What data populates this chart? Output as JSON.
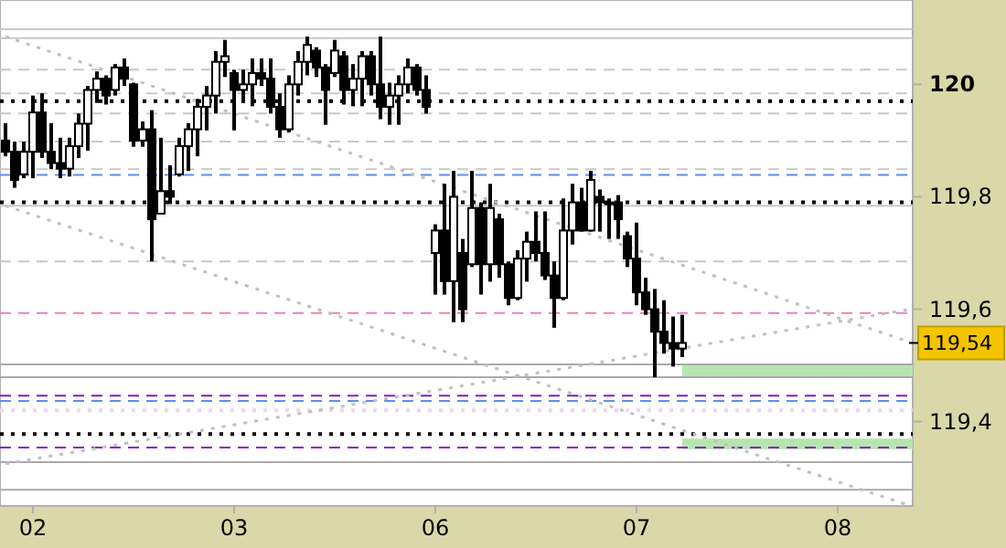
{
  "chart_data": {
    "type": "candlestick",
    "categories": [
      null,
      null,
      null,
      "02",
      null,
      null,
      null,
      null,
      null,
      null,
      null,
      null,
      null,
      null,
      null,
      null,
      null,
      null,
      null,
      null,
      null,
      null,
      null,
      null,
      null,
      "03",
      null,
      null,
      null,
      null,
      null,
      null,
      null,
      null,
      null,
      null,
      null,
      null,
      null,
      null,
      null,
      null,
      null,
      null,
      null,
      null,
      null,
      "06",
      null,
      null,
      null,
      null,
      null,
      null,
      null,
      null,
      null,
      null,
      null,
      null,
      null,
      null,
      null,
      null,
      null,
      null,
      null,
      null,
      null,
      "07",
      null,
      null,
      null,
      null,
      null,
      null,
      null,
      null,
      null,
      null,
      null,
      null,
      null,
      null,
      null,
      null,
      null,
      null,
      null,
      null,
      null,
      "08",
      null,
      null,
      null,
      null,
      null,
      null,
      null,
      null
    ],
    "ylim": [
      119.25,
      120.15
    ],
    "yticks": [
      {
        "value": 119.4,
        "label": "119,4"
      },
      {
        "value": 119.6,
        "label": "119,6"
      },
      {
        "value": 119.8,
        "label": "119,8"
      },
      120
    ],
    "series": [
      {
        "type": "line",
        "color": "#c0c0c0",
        "line_style": "dotted",
        "values": [
          120.085,
          null,
          null,
          null,
          null,
          null,
          null,
          null,
          null,
          null,
          null,
          null,
          null,
          null,
          null,
          null,
          null,
          null,
          null,
          null,
          null,
          null,
          null,
          null,
          null,
          null,
          null,
          null,
          null,
          null,
          null,
          null,
          null,
          null,
          null,
          null,
          null,
          null,
          null,
          null,
          null,
          null,
          null,
          null,
          null,
          null,
          null,
          null,
          null,
          null,
          null,
          null,
          null,
          null,
          null,
          null,
          null,
          null,
          null,
          null,
          null,
          null,
          null,
          null,
          null,
          null,
          null,
          null,
          null,
          null,
          null,
          null,
          null,
          null,
          null,
          null,
          null,
          null,
          null,
          null,
          null,
          null,
          null,
          null,
          null,
          null,
          null,
          null,
          null,
          null,
          null,
          null,
          null,
          null,
          null,
          null,
          null,
          null,
          null,
          119.541
        ]
      },
      {
        "type": "line",
        "color": "#c0c0c0",
        "line_style": "dotted",
        "values": [
          119.784,
          null,
          null,
          null,
          null,
          null,
          null,
          null,
          null,
          null,
          null,
          null,
          null,
          null,
          null,
          null,
          null,
          null,
          null,
          null,
          null,
          null,
          null,
          null,
          null,
          null,
          null,
          null,
          null,
          null,
          null,
          null,
          null,
          null,
          null,
          null,
          null,
          null,
          null,
          null,
          null,
          null,
          null,
          null,
          null,
          null,
          null,
          null,
          null,
          null,
          null,
          null,
          null,
          null,
          null,
          null,
          null,
          null,
          null,
          null,
          null,
          null,
          null,
          null,
          null,
          null,
          null,
          null,
          null,
          null,
          null,
          null,
          null,
          null,
          null,
          null,
          null,
          null,
          null,
          null,
          null,
          null,
          null,
          null,
          null,
          null,
          null,
          null,
          null,
          null,
          null,
          null,
          null,
          null,
          null,
          null,
          null,
          null,
          null,
          119.25
        ]
      },
      {
        "type": "line",
        "color": "#c0c0c0",
        "line_style": "dotted",
        "values": [
          119.325,
          null,
          null,
          null,
          null,
          null,
          null,
          null,
          null,
          null,
          null,
          null,
          null,
          null,
          null,
          null,
          null,
          null,
          null,
          null,
          null,
          null,
          null,
          null,
          null,
          null,
          null,
          null,
          null,
          null,
          null,
          null,
          null,
          null,
          null,
          null,
          null,
          null,
          null,
          null,
          null,
          null,
          null,
          null,
          null,
          null,
          null,
          null,
          null,
          null,
          null,
          null,
          null,
          null,
          null,
          null,
          null,
          null,
          null,
          null,
          null,
          null,
          null,
          null,
          null,
          null,
          null,
          null,
          null,
          null,
          null,
          null,
          null,
          null,
          null,
          null,
          null,
          null,
          null,
          null,
          null,
          null,
          null,
          null,
          null,
          null,
          null,
          null,
          null,
          null,
          null,
          null,
          null,
          null,
          null,
          null,
          null,
          null,
          null,
          119.6
        ]
      },
      {
        "color": "#000000",
        "ohlc": [
          [
            119.9,
            119.931,
            119.872,
            119.88
          ],
          [
            119.88,
            119.898,
            119.816,
            119.83
          ],
          [
            119.84,
            119.898,
            119.833,
            119.88
          ],
          [
            119.88,
            119.98,
            119.833,
            119.95
          ],
          [
            119.95,
            119.984,
            119.869,
            119.88
          ],
          [
            119.88,
            119.931,
            119.849,
            119.86
          ],
          [
            119.86,
            119.905,
            119.833,
            119.85
          ],
          [
            119.85,
            119.905,
            119.836,
            119.89
          ],
          [
            119.89,
            119.948,
            119.869,
            119.93
          ],
          [
            119.93,
            119.997,
            119.882,
            119.99
          ],
          [
            119.99,
            120.023,
            119.967,
            120.01
          ],
          [
            120.01,
            120.016,
            119.964,
            119.98
          ],
          [
            119.99,
            120.036,
            119.98,
            120.03
          ],
          [
            120.03,
            120.046,
            119.997,
            120.01
          ],
          [
            120.0,
            120.003,
            119.889,
            119.9
          ],
          [
            119.9,
            119.934,
            119.889,
            119.92
          ],
          [
            119.92,
            119.954,
            119.685,
            119.76
          ],
          [
            119.77,
            119.905,
            119.77,
            119.81
          ],
          [
            119.81,
            119.856,
            119.787,
            119.8
          ],
          [
            119.84,
            119.905,
            119.836,
            119.89
          ],
          [
            119.89,
            119.931,
            119.846,
            119.92
          ],
          [
            119.92,
            119.974,
            119.872,
            119.96
          ],
          [
            119.96,
            119.997,
            119.918,
            119.98
          ],
          [
            119.98,
            120.059,
            119.948,
            120.04
          ],
          [
            120.04,
            120.079,
            120.013,
            120.05
          ],
          [
            120.02,
            120.026,
            119.918,
            119.99
          ],
          [
            119.99,
            120.026,
            119.967,
            120.0
          ],
          [
            120.0,
            120.046,
            119.961,
            120.02
          ],
          [
            120.02,
            120.046,
            119.997,
            120.01
          ],
          [
            120.01,
            120.046,
            119.948,
            119.96
          ],
          [
            119.96,
            119.984,
            119.905,
            119.92
          ],
          [
            119.92,
            120.016,
            119.915,
            120.0
          ],
          [
            120.0,
            120.059,
            119.98,
            120.04
          ],
          [
            120.04,
            120.085,
            120.016,
            120.07
          ],
          [
            120.06,
            120.066,
            120.013,
            120.03
          ],
          [
            120.03,
            120.036,
            119.928,
            119.99
          ],
          [
            120.02,
            120.079,
            120.013,
            120.06
          ],
          [
            120.05,
            120.059,
            119.964,
            119.99
          ],
          [
            119.99,
            120.036,
            119.961,
            120.01
          ],
          [
            120.01,
            120.059,
            119.961,
            120.05
          ],
          [
            120.05,
            120.059,
            119.98,
            120.0
          ],
          [
            120.0,
            120.085,
            119.938,
            119.96
          ],
          [
            119.96,
            120.003,
            119.928,
            119.98
          ],
          [
            119.98,
            120.016,
            119.928,
            120.0
          ],
          [
            120.0,
            120.046,
            119.984,
            120.03
          ],
          [
            120.03,
            120.036,
            119.98,
            119.99
          ],
          [
            119.99,
            120.016,
            119.948,
            119.96
          ],
          [
            119.7,
            119.751,
            119.626,
            119.74
          ],
          [
            119.74,
            119.823,
            119.626,
            119.65
          ],
          [
            119.65,
            119.846,
            119.577,
            119.8
          ],
          [
            119.7,
            119.725,
            119.577,
            119.6
          ],
          [
            119.68,
            119.846,
            119.675,
            119.78
          ],
          [
            119.78,
            119.79,
            119.626,
            119.68
          ],
          [
            119.68,
            119.823,
            119.649,
            119.78
          ],
          [
            119.76,
            119.77,
            119.656,
            119.68
          ],
          [
            119.68,
            119.685,
            119.607,
            119.62
          ],
          [
            119.62,
            119.705,
            119.616,
            119.69
          ],
          [
            119.69,
            119.738,
            119.649,
            119.72
          ],
          [
            119.72,
            119.774,
            119.685,
            119.7
          ],
          [
            119.7,
            119.774,
            119.652,
            119.66
          ],
          [
            119.66,
            119.685,
            119.567,
            119.62
          ],
          [
            119.62,
            119.797,
            119.616,
            119.74
          ],
          [
            119.74,
            119.823,
            119.715,
            119.79
          ],
          [
            119.79,
            119.816,
            119.738,
            119.74
          ],
          [
            119.74,
            119.846,
            119.738,
            119.83
          ],
          [
            119.8,
            119.813,
            119.738,
            119.79
          ],
          [
            119.79,
            119.797,
            119.725,
            119.79
          ],
          [
            119.79,
            119.803,
            119.725,
            119.76
          ],
          [
            119.73,
            119.738,
            119.675,
            119.69
          ],
          [
            119.69,
            119.754,
            119.607,
            119.63
          ],
          [
            119.63,
            119.656,
            119.59,
            119.6
          ],
          [
            119.6,
            119.636,
            119.479,
            119.56
          ],
          [
            119.56,
            119.616,
            119.521,
            119.54
          ],
          [
            119.54,
            119.587,
            119.498,
            119.53
          ],
          [
            119.53,
            119.59,
            119.515,
            119.54
          ],
          null,
          null,
          null,
          null,
          null,
          null,
          null,
          null,
          null,
          null,
          null,
          null,
          null,
          null,
          null,
          null,
          null,
          null,
          null,
          null,
          null,
          null,
          null,
          null,
          null
        ]
      }
    ],
    "ref_lines": [
      {
        "axis": "y",
        "value": 120.098,
        "color": "#c8c8c8",
        "line_style": "solid"
      },
      {
        "axis": "y",
        "value": 120.082,
        "color": "#c8c8c8",
        "line_style": "solid"
      },
      {
        "axis": "y",
        "value": 120.026,
        "color": "#c8c8c8",
        "line_style": "dashed"
      },
      {
        "axis": "y",
        "value": 119.984,
        "color": "#c8c8c8",
        "line_style": "dashed"
      },
      {
        "axis": "y",
        "value": 119.97,
        "color": "#000000",
        "line_style": "dotted"
      },
      {
        "axis": "y",
        "value": 119.948,
        "color": "#c8c8c8",
        "line_style": "dashed"
      },
      {
        "axis": "y",
        "value": 119.898,
        "color": "#c8c8c8",
        "line_style": "dashed"
      },
      {
        "axis": "y",
        "value": 119.849,
        "color": "#c8c8c8",
        "line_style": "dashed"
      },
      {
        "axis": "y",
        "value": 119.839,
        "color": "#5b8fef",
        "line_style": "dashed"
      },
      {
        "axis": "y",
        "value": 119.79,
        "color": "#000000",
        "line_style": "dotted"
      },
      {
        "axis": "y",
        "value": 119.784,
        "color": "#c8c8c8",
        "line_style": "solid"
      },
      {
        "axis": "y",
        "value": 119.685,
        "color": "#c8c8c8",
        "line_style": "dashed"
      },
      {
        "axis": "y",
        "value": 119.593,
        "color": "#e87fbf",
        "line_style": "dashed"
      },
      {
        "axis": "y",
        "value": 119.502,
        "color": "#aaaaaa",
        "line_style": "solid"
      },
      {
        "axis": "y",
        "value": 119.479,
        "color": "#aaaaaa",
        "line_style": "solid"
      },
      {
        "axis": "y",
        "value": 119.446,
        "color": "#8a16c8",
        "line_style": "dashed"
      },
      {
        "axis": "y",
        "value": 119.437,
        "color": "#5b8fef",
        "line_style": "dashed"
      },
      {
        "axis": "y",
        "value": 119.42,
        "color": "#ead6f2",
        "line_style": "dotted"
      },
      {
        "axis": "y",
        "value": 119.378,
        "color": "#000000",
        "line_style": "dotted"
      },
      {
        "axis": "y",
        "value": 119.354,
        "color": "#8a16c8",
        "line_style": "dashed"
      },
      {
        "axis": "y",
        "value": 119.328,
        "color": "#aaaaaa",
        "line_style": "solid"
      },
      {
        "axis": "y",
        "value": 119.279,
        "color": "#aaaaaa",
        "line_style": "solid"
      }
    ],
    "bands": [
      {
        "axis": "y",
        "from": 119.479,
        "to": 119.502,
        "color": "#b6e6b0"
      },
      {
        "axis": "y",
        "from": 119.351,
        "to": 119.37,
        "color": "#b6e6b0"
      }
    ],
    "annotations": [
      "119,54"
    ]
  }
}
